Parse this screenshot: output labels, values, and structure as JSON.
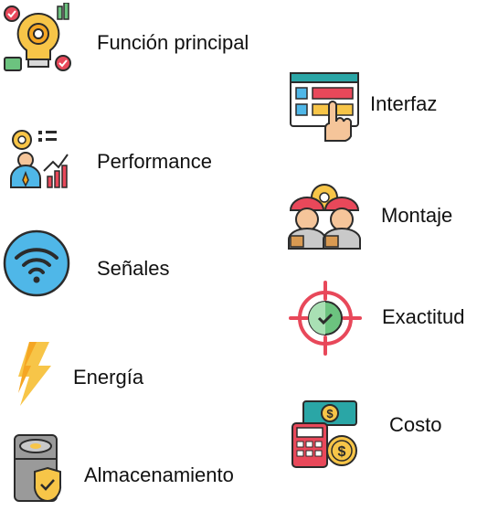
{
  "left_column": {
    "funcion": {
      "label": "Función principal",
      "icon": "bulb-gear-icon"
    },
    "performance": {
      "label": "Performance",
      "icon": "growth-person-icon"
    },
    "senales": {
      "label": "Señales",
      "icon": "wifi-signal-icon"
    },
    "energia": {
      "label": "Energía",
      "icon": "lightning-icon"
    },
    "almacenamiento": {
      "label": "Almacenamiento",
      "icon": "storage-shield-icon"
    }
  },
  "right_column": {
    "interfaz": {
      "label": "Interfaz",
      "icon": "touch-interface-icon"
    },
    "montaje": {
      "label": "Montaje",
      "icon": "workers-icon"
    },
    "exactitud": {
      "label": "Exactitud",
      "icon": "target-check-icon"
    },
    "costo": {
      "label": "Costo",
      "icon": "calculator-money-icon"
    }
  },
  "colors": {
    "outline": "#2b2b2b",
    "gold": "#f7c548",
    "blue": "#4fb7e8",
    "red": "#e8485a",
    "green": "#6cc37f",
    "teal": "#2aa6a6"
  }
}
